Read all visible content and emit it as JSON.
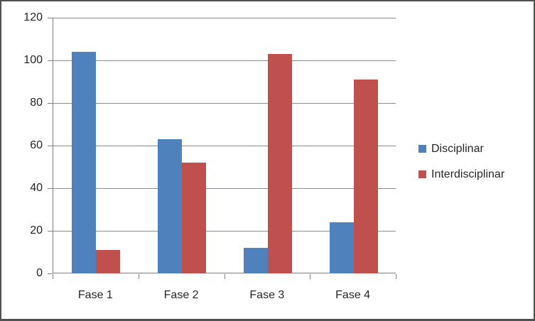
{
  "chart_data": {
    "type": "bar",
    "categories": [
      "Fase 1",
      "Fase 2",
      "Fase 3",
      "Fase 4"
    ],
    "series": [
      {
        "name": "Disciplinar",
        "color": "#4F81BD",
        "values": [
          104,
          63,
          12,
          24
        ]
      },
      {
        "name": "Interdisciplinar",
        "color": "#C0504D",
        "values": [
          11,
          52,
          103,
          91
        ]
      }
    ],
    "title": "",
    "xlabel": "",
    "ylabel": "",
    "ylim": [
      0,
      120
    ],
    "yticks": [
      0,
      20,
      40,
      60,
      80,
      100,
      120
    ],
    "grid": true,
    "legend_position": "right"
  },
  "colors": {
    "background": "#FFFFFF",
    "frame_border": "#515151",
    "axis": "#7F7F7F",
    "gridline": "#8C8C8C",
    "text": "#262626",
    "series_blue": "#4F81BD",
    "series_red": "#C0504D"
  }
}
